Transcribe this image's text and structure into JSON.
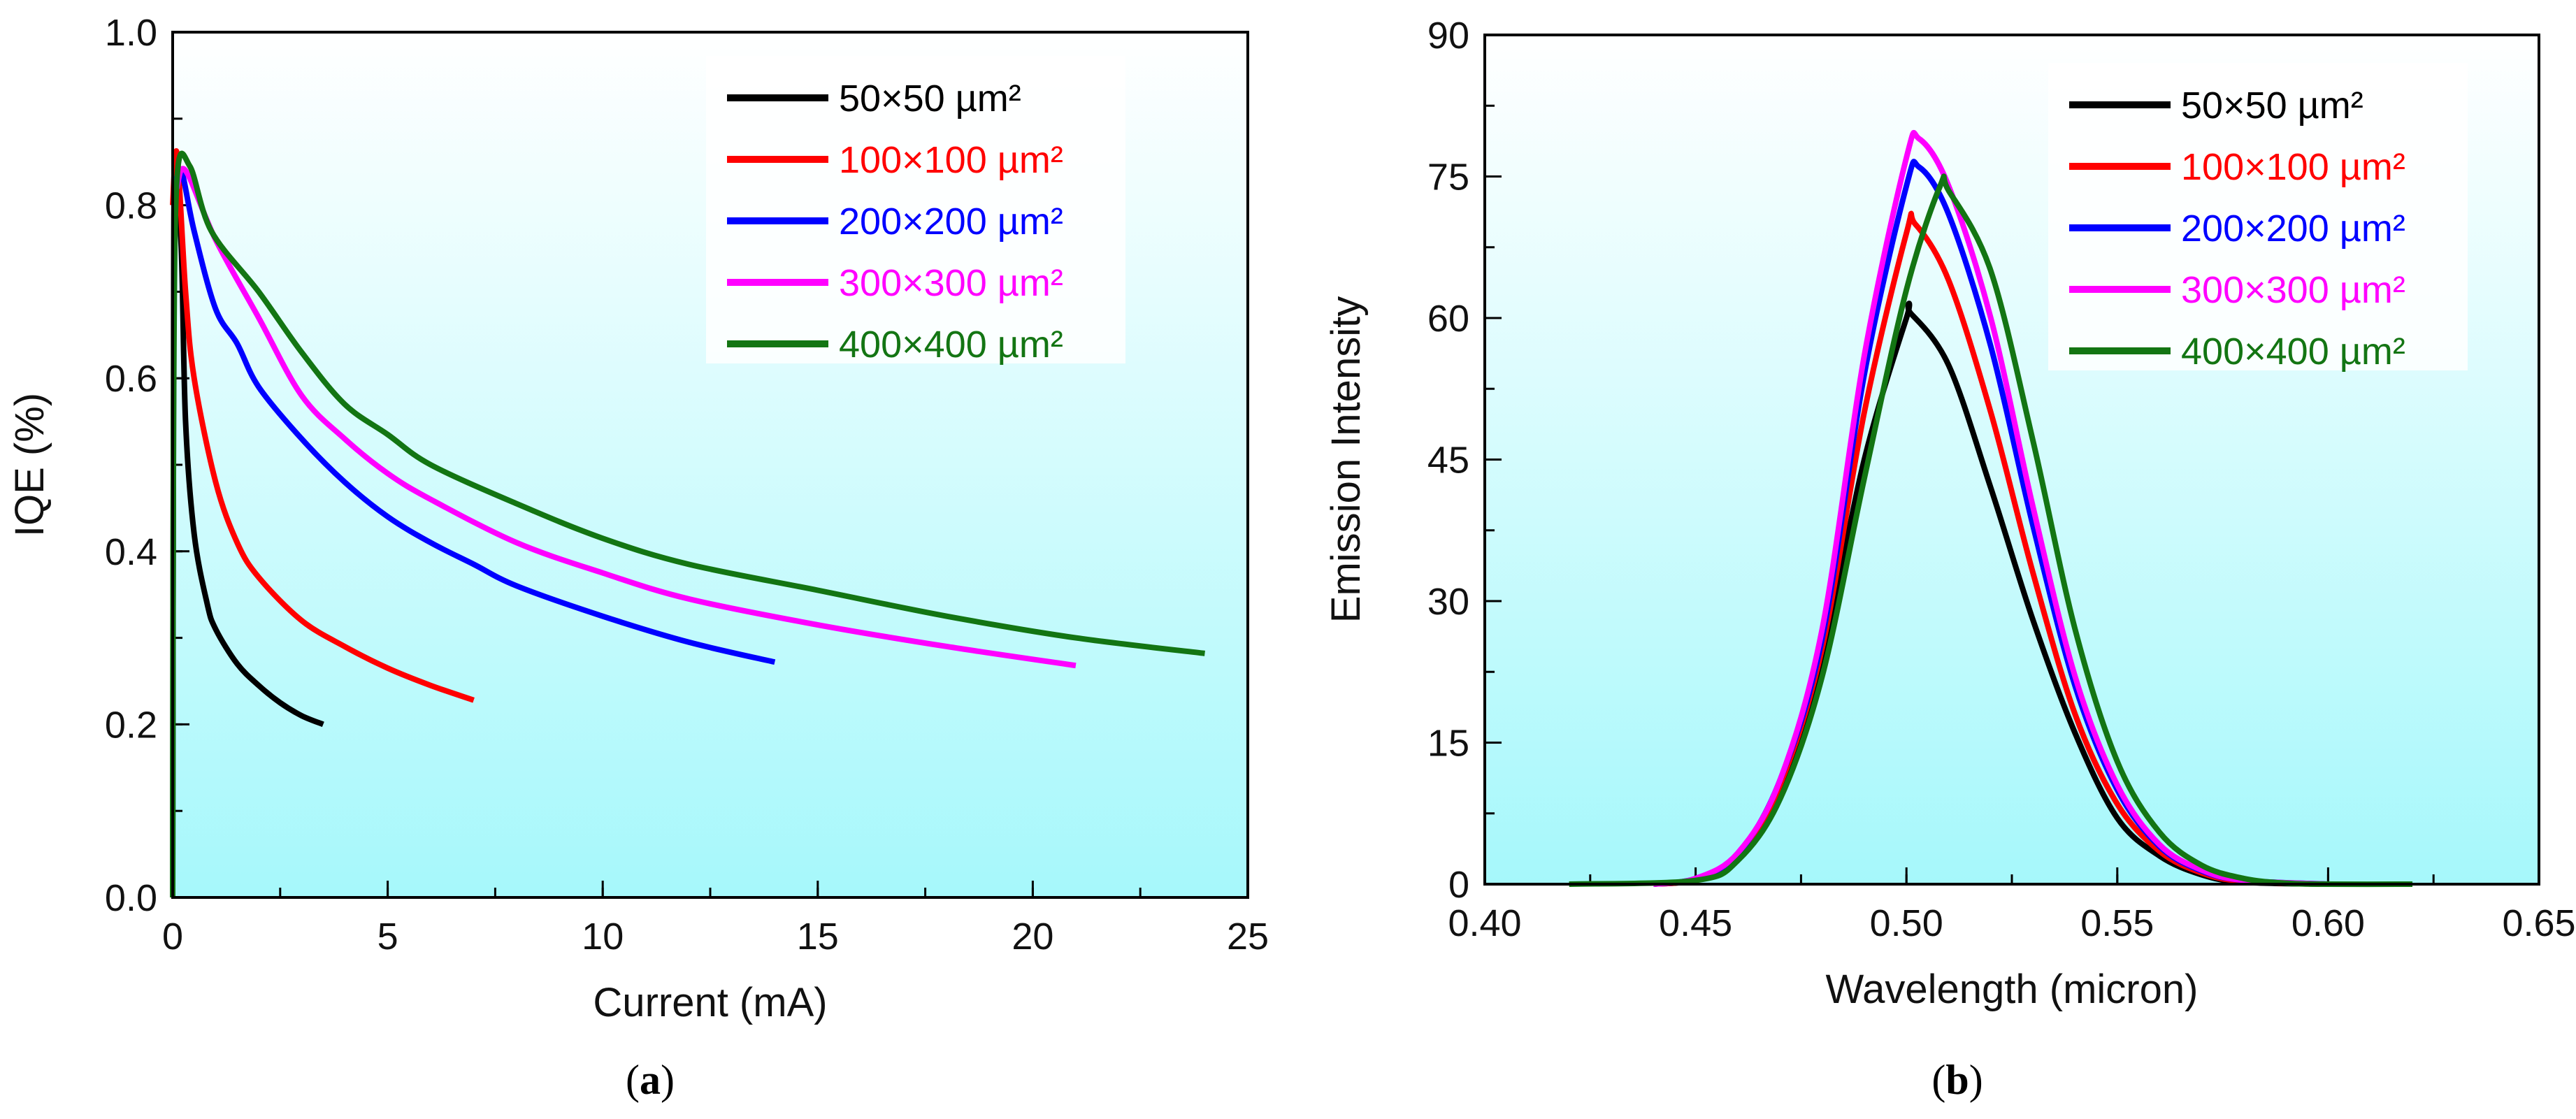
{
  "chart_data": [
    {
      "type": "line",
      "panel_label": "a",
      "xlabel": "Current (mA)",
      "ylabel": "IQE (%)",
      "xlim": [
        0,
        25
      ],
      "ylim": [
        0,
        1.0
      ],
      "xticks": [
        "0",
        "5",
        "10",
        "15",
        "20",
        "25"
      ],
      "yticks": [
        "0.0",
        "0.2",
        "0.4",
        "0.6",
        "0.8",
        "1.0"
      ],
      "xtick_values": [
        0,
        5,
        10,
        15,
        20,
        25
      ],
      "ytick_values": [
        0,
        0.2,
        0.4,
        0.6,
        0.8,
        1.0
      ],
      "xminor": 2.5,
      "yminor": 0.1,
      "legend_position": "top-right",
      "series": [
        {
          "name": "50×50 µm²",
          "color": "#000000",
          "points": [
            [
              0,
              0
            ],
            [
              0.02,
              0.6
            ],
            [
              0.05,
              0.84
            ],
            [
              0.2,
              0.75
            ],
            [
              0.3,
              0.55
            ],
            [
              0.5,
              0.42
            ],
            [
              0.8,
              0.34
            ],
            [
              1.0,
              0.31
            ],
            [
              1.5,
              0.27
            ],
            [
              2,
              0.245
            ],
            [
              2.5,
              0.225
            ],
            [
              3,
              0.21
            ],
            [
              3.5,
              0.2
            ]
          ]
        },
        {
          "name": "100×100 µm²",
          "color": "#ff0000",
          "points": [
            [
              0,
              0.8
            ],
            [
              0.1,
              0.86
            ],
            [
              0.3,
              0.7
            ],
            [
              0.5,
              0.6
            ],
            [
              1,
              0.48
            ],
            [
              1.5,
              0.41
            ],
            [
              2,
              0.37
            ],
            [
              3,
              0.32
            ],
            [
              4,
              0.29
            ],
            [
              5,
              0.265
            ],
            [
              6,
              0.245
            ],
            [
              7,
              0.228
            ]
          ]
        },
        {
          "name": "200×200 µm²",
          "color": "#0000ff",
          "points": [
            [
              0.05,
              0.82
            ],
            [
              0.2,
              0.84
            ],
            [
              0.5,
              0.77
            ],
            [
              1,
              0.68
            ],
            [
              1.5,
              0.64
            ],
            [
              2,
              0.59
            ],
            [
              3,
              0.53
            ],
            [
              4,
              0.48
            ],
            [
              5,
              0.44
            ],
            [
              6,
              0.41
            ],
            [
              7,
              0.385
            ],
            [
              8,
              0.36
            ],
            [
              10,
              0.325
            ],
            [
              12,
              0.295
            ],
            [
              14,
              0.272
            ]
          ]
        },
        {
          "name": "300×300 µm²",
          "color": "#ff00ff",
          "points": [
            [
              0.1,
              0.82
            ],
            [
              0.3,
              0.84
            ],
            [
              1,
              0.76
            ],
            [
              2,
              0.67
            ],
            [
              3,
              0.58
            ],
            [
              4,
              0.53
            ],
            [
              5,
              0.49
            ],
            [
              6,
              0.46
            ],
            [
              8,
              0.41
            ],
            [
              10,
              0.375
            ],
            [
              12,
              0.345
            ],
            [
              15,
              0.315
            ],
            [
              18,
              0.29
            ],
            [
              21,
              0.268
            ]
          ]
        },
        {
          "name": "400×400 µm²",
          "color": "#137513",
          "points": [
            [
              0,
              0
            ],
            [
              0.02,
              0.55
            ],
            [
              0.1,
              0.83
            ],
            [
              0.4,
              0.845
            ],
            [
              0.9,
              0.77
            ],
            [
              2,
              0.7
            ],
            [
              3,
              0.63
            ],
            [
              4,
              0.57
            ],
            [
              5,
              0.535
            ],
            [
              6,
              0.5
            ],
            [
              8,
              0.455
            ],
            [
              10,
              0.415
            ],
            [
              12,
              0.385
            ],
            [
              15,
              0.355
            ],
            [
              18,
              0.325
            ],
            [
              21,
              0.3
            ],
            [
              24,
              0.282
            ]
          ]
        }
      ]
    },
    {
      "type": "line",
      "panel_label": "b",
      "xlabel": "Wavelength (micron)",
      "ylabel": "Emission Intensity",
      "xlim": [
        0.4,
        0.65
      ],
      "ylim": [
        0,
        90
      ],
      "xticks": [
        "0.40",
        "0.45",
        "0.50",
        "0.55",
        "0.60",
        "0.65"
      ],
      "yticks": [
        "0",
        "15",
        "30",
        "45",
        "60",
        "75",
        "90"
      ],
      "xtick_values": [
        0.4,
        0.45,
        0.5,
        0.55,
        0.6,
        0.65
      ],
      "ytick_values": [
        0,
        15,
        30,
        45,
        60,
        75,
        90
      ],
      "xminor": 0.025,
      "yminor": 7.5,
      "legend_position": "top-right",
      "series": [
        {
          "name": "50×50 µm²",
          "color": "#000000",
          "points": [
            [
              0.44,
              0
            ],
            [
              0.45,
              0.5
            ],
            [
              0.46,
              3
            ],
            [
              0.47,
              10
            ],
            [
              0.48,
              24
            ],
            [
              0.49,
              45
            ],
            [
              0.5,
              60
            ],
            [
              0.501,
              60.5
            ],
            [
              0.51,
              55
            ],
            [
              0.52,
              42
            ],
            [
              0.53,
              28
            ],
            [
              0.54,
              16
            ],
            [
              0.55,
              7
            ],
            [
              0.56,
              3
            ],
            [
              0.57,
              1
            ],
            [
              0.58,
              0.2
            ],
            [
              0.6,
              0
            ]
          ]
        },
        {
          "name": "100×100 µm²",
          "color": "#ff0000",
          "points": [
            [
              0.44,
              0
            ],
            [
              0.45,
              0.5
            ],
            [
              0.46,
              3
            ],
            [
              0.47,
              10.5
            ],
            [
              0.48,
              25
            ],
            [
              0.49,
              50
            ],
            [
              0.5,
              69
            ],
            [
              0.502,
              70
            ],
            [
              0.51,
              64
            ],
            [
              0.52,
              50
            ],
            [
              0.53,
              33
            ],
            [
              0.54,
              18
            ],
            [
              0.55,
              8.5
            ],
            [
              0.56,
              3.5
            ],
            [
              0.57,
              1.2
            ],
            [
              0.58,
              0.3
            ],
            [
              0.6,
              0
            ]
          ]
        },
        {
          "name": "200×200 µm²",
          "color": "#0000ff",
          "points": [
            [
              0.44,
              0
            ],
            [
              0.45,
              0.6
            ],
            [
              0.46,
              3.2
            ],
            [
              0.47,
              11
            ],
            [
              0.48,
              26
            ],
            [
              0.49,
              54
            ],
            [
              0.5,
              74
            ],
            [
              0.503,
              76
            ],
            [
              0.51,
              71
            ],
            [
              0.52,
              57
            ],
            [
              0.53,
              38
            ],
            [
              0.54,
              21
            ],
            [
              0.55,
              10
            ],
            [
              0.56,
              4
            ],
            [
              0.57,
              1.4
            ],
            [
              0.58,
              0.4
            ],
            [
              0.6,
              0
            ]
          ]
        },
        {
          "name": "300×300 µm²",
          "color": "#ff00ff",
          "points": [
            [
              0.44,
              0
            ],
            [
              0.45,
              0.6
            ],
            [
              0.46,
              3.3
            ],
            [
              0.47,
              11
            ],
            [
              0.48,
              27
            ],
            [
              0.49,
              56
            ],
            [
              0.5,
              77
            ],
            [
              0.503,
              79
            ],
            [
              0.51,
              74
            ],
            [
              0.52,
              60
            ],
            [
              0.53,
              40
            ],
            [
              0.54,
              22
            ],
            [
              0.55,
              10.5
            ],
            [
              0.56,
              4.2
            ],
            [
              0.57,
              1.5
            ],
            [
              0.58,
              0.4
            ],
            [
              0.6,
              0
            ]
          ]
        },
        {
          "name": "400×400 µm²",
          "color": "#137513",
          "points": [
            [
              0.42,
              0
            ],
            [
              0.45,
              0.4
            ],
            [
              0.46,
              2.5
            ],
            [
              0.47,
              9
            ],
            [
              0.48,
              22
            ],
            [
              0.49,
              43
            ],
            [
              0.5,
              63
            ],
            [
              0.508,
              74
            ],
            [
              0.51,
              73.5
            ],
            [
              0.52,
              65
            ],
            [
              0.53,
              47
            ],
            [
              0.54,
              27
            ],
            [
              0.55,
              13
            ],
            [
              0.56,
              5.5
            ],
            [
              0.57,
              2
            ],
            [
              0.58,
              0.6
            ],
            [
              0.59,
              0.1
            ],
            [
              0.6,
              0
            ],
            [
              0.62,
              0
            ]
          ]
        }
      ]
    }
  ]
}
